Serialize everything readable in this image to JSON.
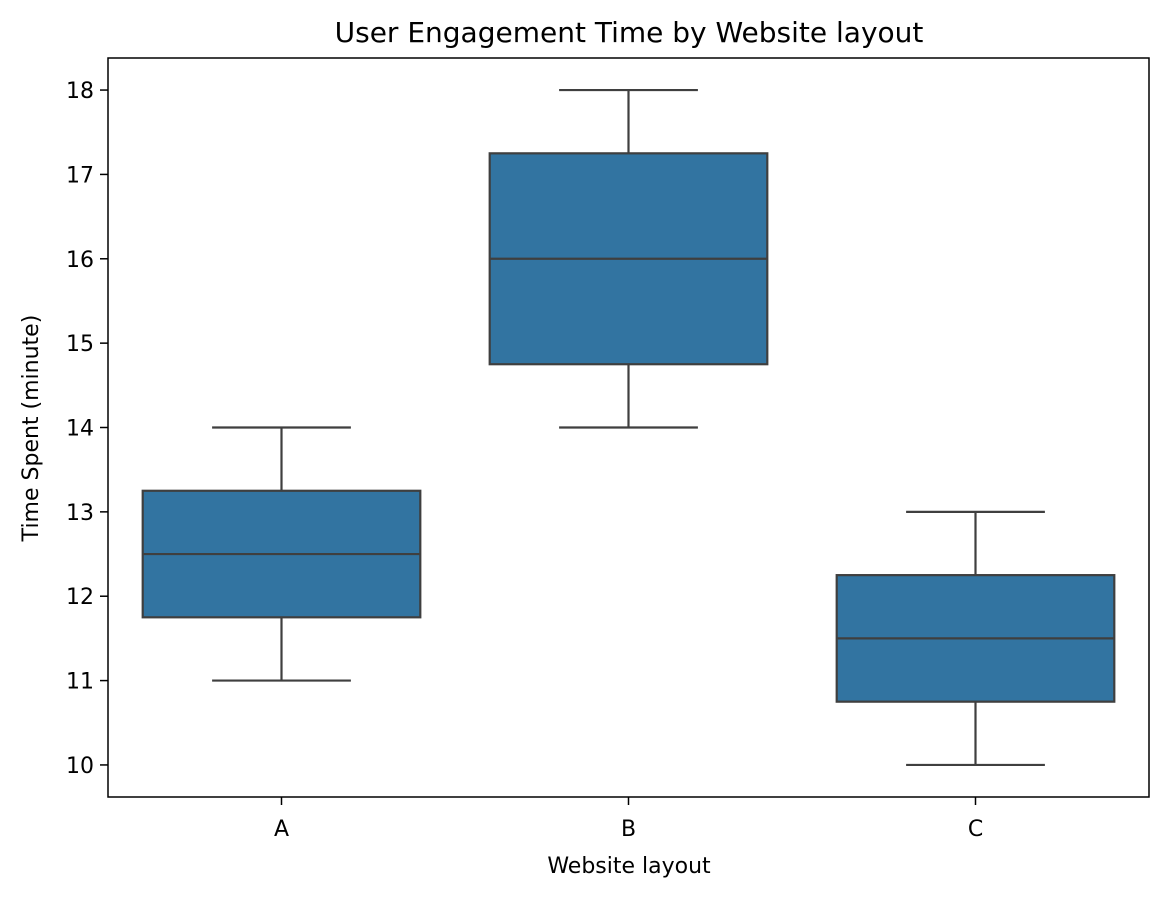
{
  "chart_data": {
    "type": "box",
    "title": "User Engagement Time by Website layout",
    "xlabel": "Website layout",
    "ylabel": "Time Spent (minute)",
    "categories": [
      "A",
      "B",
      "C"
    ],
    "boxes": [
      {
        "category": "A",
        "min": 11,
        "q1": 11.75,
        "median": 12.5,
        "q3": 13.25,
        "max": 14
      },
      {
        "category": "B",
        "min": 14,
        "q1": 14.75,
        "median": 16,
        "q3": 17.25,
        "max": 18
      },
      {
        "category": "C",
        "min": 10,
        "q1": 10.75,
        "median": 11.5,
        "q3": 12.25,
        "max": 13
      }
    ],
    "ylim": [
      9.62,
      18.38
    ],
    "yticks": [
      10,
      11,
      12,
      13,
      14,
      15,
      16,
      17,
      18
    ],
    "grid": false,
    "box_color": "#3274a1",
    "line_color": "#3f3f3f"
  }
}
